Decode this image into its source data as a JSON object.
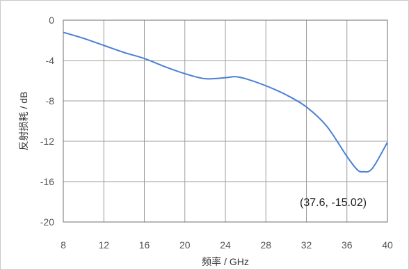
{
  "chart_data": {
    "type": "line",
    "xlabel": "频率 / GHz",
    "ylabel": "反射损耗 / dB",
    "xlim": [
      8,
      40
    ],
    "ylim": [
      -20,
      0
    ],
    "x_ticks": [
      8,
      12,
      16,
      20,
      24,
      28,
      32,
      36,
      40
    ],
    "y_ticks": [
      0,
      -4,
      -8,
      -12,
      -16,
      -20
    ],
    "x_tick_labels": [
      "8",
      "12",
      "16",
      "20",
      "24",
      "28",
      "32",
      "36",
      "40"
    ],
    "y_tick_labels": [
      "0",
      "-4",
      "-8",
      "-12",
      "-16",
      "-20"
    ],
    "grid": true,
    "series": [
      {
        "color": "#4a7fd4",
        "x": [
          8,
          10,
          12,
          14,
          16,
          18,
          20,
          22,
          24,
          25,
          26,
          28,
          30,
          32,
          34,
          36,
          37,
          37.6,
          38.5,
          40
        ],
        "y": [
          -1.2,
          -1.8,
          -2.5,
          -3.2,
          -3.8,
          -4.6,
          -5.3,
          -5.8,
          -5.7,
          -5.6,
          -5.8,
          -6.5,
          -7.4,
          -8.6,
          -10.5,
          -13.5,
          -14.8,
          -15.02,
          -14.7,
          -12.1
        ]
      }
    ],
    "annotations": [
      {
        "text": "(37.6, -15.02)",
        "x": 37.6,
        "y": -15.02
      }
    ]
  }
}
